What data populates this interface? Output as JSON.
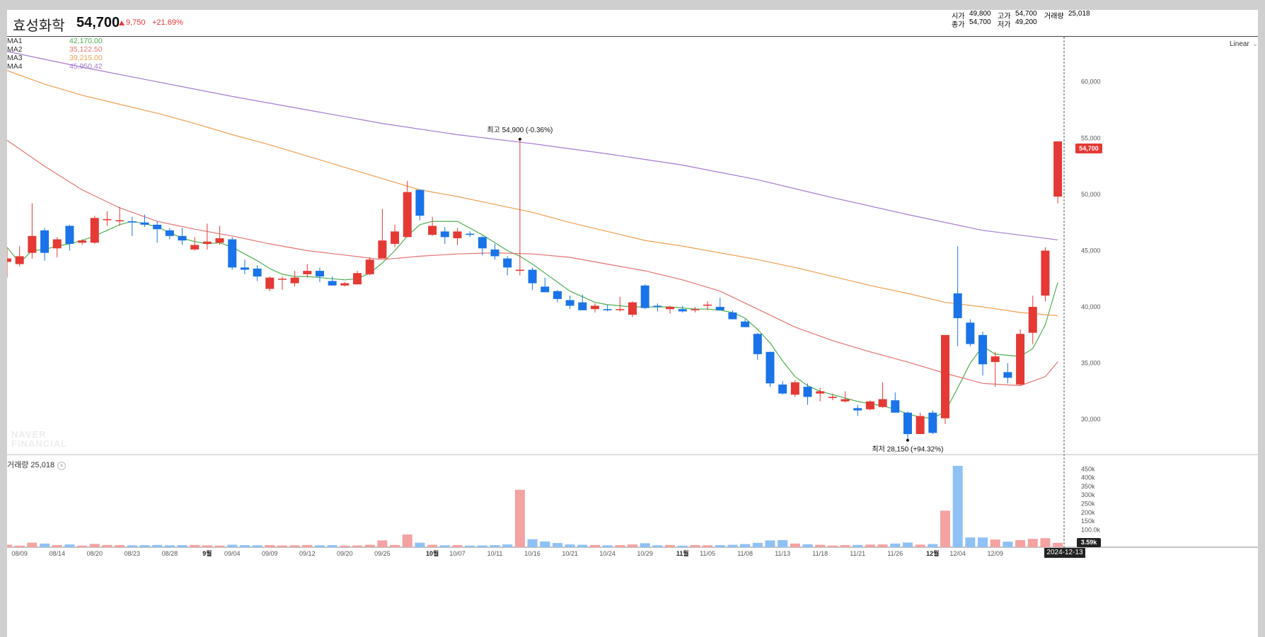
{
  "header": {
    "stock_name": "효성화학",
    "price": "54,700",
    "change": "9,750",
    "change_pct": "+21.69%",
    "ohlc": {
      "open_label": "시가",
      "open": "49,800",
      "high_label": "고가",
      "high": "54,700",
      "volume_label": "거래량",
      "volume": "25,018",
      "close_label": "종가",
      "close": "54,700",
      "low_label": "저가",
      "low": "49,200"
    }
  },
  "legend": {
    "ma": [
      {
        "name": "MA1",
        "value": "42,170.00",
        "color": "#4caf50"
      },
      {
        "name": "MA2",
        "value": "35,122.50",
        "color": "#e57373"
      },
      {
        "name": "MA3",
        "value": "39,215.00",
        "color": "#f0a050"
      },
      {
        "name": "MA4",
        "value": "45,950.42",
        "color": "#a57ad0"
      }
    ]
  },
  "scale_select": "Linear",
  "volume_label": "거래량 25,018",
  "watermark": {
    "line1": "NAVER",
    "line2": "FINANCIAL"
  },
  "current_price_tag": "54,700",
  "current_volume_tag": "3.59k",
  "crosshair_date": "2024-12-13",
  "annotations": {
    "high": "최고 54,900 (-0.36%)",
    "low": "최저 28,150 (+94.32%)"
  },
  "colors": {
    "up": "#e53935",
    "down": "#1a73e8",
    "vol_up": "#f4a2a2",
    "vol_down": "#8fc1f5"
  },
  "chart_data": {
    "type": "candlestick",
    "price_axis": {
      "ticks": [
        30000,
        35000,
        40000,
        45000,
        50000,
        55000,
        60000
      ],
      "labels": [
        "30,000",
        "35,000",
        "40,000",
        "45,000",
        "50,000",
        "55,000",
        "60,000"
      ],
      "range": [
        27000,
        64000
      ]
    },
    "volume_axis": {
      "ticks": [
        100000,
        150000,
        200000,
        250000,
        300000,
        350000,
        400000,
        450000
      ],
      "labels": [
        "100.0k",
        "150k",
        "200k",
        "250k",
        "300k",
        "350k",
        "400k",
        "450k"
      ],
      "range": [
        0,
        500000
      ]
    },
    "x_labels": [
      {
        "i": 1,
        "label": "08/09"
      },
      {
        "i": 4,
        "label": "08/14"
      },
      {
        "i": 7,
        "label": "08/20"
      },
      {
        "i": 10,
        "label": "08/23"
      },
      {
        "i": 13,
        "label": "08/28"
      },
      {
        "i": 16,
        "label": "9월",
        "bold": true
      },
      {
        "i": 18,
        "label": "09/04"
      },
      {
        "i": 21,
        "label": "09/09"
      },
      {
        "i": 24,
        "label": "09/12"
      },
      {
        "i": 27,
        "label": "09/20"
      },
      {
        "i": 30,
        "label": "09/25"
      },
      {
        "i": 34,
        "label": "10월",
        "bold": true
      },
      {
        "i": 36,
        "label": "10/07"
      },
      {
        "i": 39,
        "label": "10/11"
      },
      {
        "i": 42,
        "label": "10/16"
      },
      {
        "i": 45,
        "label": "10/21"
      },
      {
        "i": 48,
        "label": "10/24"
      },
      {
        "i": 51,
        "label": "10/29"
      },
      {
        "i": 54,
        "label": "11월",
        "bold": true
      },
      {
        "i": 56,
        "label": "11/05"
      },
      {
        "i": 59,
        "label": "11/08"
      },
      {
        "i": 62,
        "label": "11/13"
      },
      {
        "i": 65,
        "label": "11/18"
      },
      {
        "i": 68,
        "label": "11/21"
      },
      {
        "i": 71,
        "label": "11/26"
      },
      {
        "i": 74,
        "label": "12월",
        "bold": true
      },
      {
        "i": 76,
        "label": "12/04"
      },
      {
        "i": 79,
        "label": "12/09"
      }
    ],
    "candles": [
      [
        44000,
        45200,
        42600,
        44300,
        14000
      ],
      [
        43800,
        45400,
        43600,
        44500,
        9000
      ],
      [
        44800,
        49200,
        44300,
        46300,
        26000
      ],
      [
        46800,
        47000,
        44100,
        44800,
        21000
      ],
      [
        45200,
        46200,
        44400,
        46000,
        12000
      ],
      [
        47200,
        47300,
        45000,
        45600,
        16000
      ],
      [
        45700,
        46000,
        45500,
        45900,
        9000
      ],
      [
        45700,
        48100,
        45600,
        47900,
        19000
      ],
      [
        47700,
        48500,
        47200,
        47800,
        13000
      ],
      [
        47700,
        48900,
        47200,
        47700,
        12000
      ],
      [
        47600,
        48000,
        46300,
        47500,
        11000
      ],
      [
        47500,
        48200,
        47100,
        47300,
        12000
      ],
      [
        47300,
        47600,
        45700,
        46900,
        13000
      ],
      [
        46800,
        47000,
        46000,
        46300,
        11000
      ],
      [
        46300,
        47000,
        45500,
        45900,
        12000
      ],
      [
        45100,
        46200,
        45000,
        45500,
        13000
      ],
      [
        45600,
        47400,
        45100,
        45800,
        11000
      ],
      [
        45700,
        47200,
        45500,
        46100,
        9000
      ],
      [
        46000,
        46200,
        43300,
        43500,
        14000
      ],
      [
        43500,
        44200,
        42900,
        43300,
        12000
      ],
      [
        43400,
        43700,
        42300,
        42700,
        11000
      ],
      [
        41600,
        42700,
        41400,
        42600,
        12000
      ],
      [
        42500,
        42700,
        41500,
        42500,
        10000
      ],
      [
        42100,
        43200,
        41800,
        42600,
        11000
      ],
      [
        42900,
        43800,
        42600,
        43200,
        13000
      ],
      [
        43200,
        43500,
        42200,
        42700,
        11000
      ],
      [
        42300,
        42700,
        41900,
        41900,
        12000
      ],
      [
        41900,
        42200,
        41800,
        42100,
        9000
      ],
      [
        42000,
        43200,
        42000,
        43000,
        10000
      ],
      [
        42900,
        44400,
        42800,
        44200,
        14000
      ],
      [
        44300,
        48700,
        44300,
        45900,
        39000
      ],
      [
        45600,
        47300,
        45300,
        46700,
        13000
      ],
      [
        46200,
        51200,
        46200,
        50200,
        73000
      ],
      [
        50400,
        50400,
        47700,
        48100,
        26000
      ],
      [
        46400,
        48000,
        46300,
        47200,
        14000
      ],
      [
        46700,
        47100,
        45600,
        46200,
        11000
      ],
      [
        46100,
        47000,
        45500,
        46700,
        12000
      ],
      [
        46500,
        46700,
        46200,
        46400,
        9000
      ],
      [
        46200,
        46300,
        44600,
        45200,
        10000
      ],
      [
        45100,
        45600,
        44200,
        44500,
        12000
      ],
      [
        44300,
        44500,
        42800,
        43500,
        16000
      ],
      [
        43200,
        54900,
        42800,
        43300,
        330000
      ],
      [
        43300,
        43500,
        41500,
        42100,
        46000
      ],
      [
        41800,
        42600,
        41400,
        41300,
        33000
      ],
      [
        41400,
        41500,
        40400,
        40700,
        24000
      ],
      [
        40600,
        41000,
        39800,
        40100,
        16000
      ],
      [
        40400,
        41100,
        39700,
        39700,
        14000
      ],
      [
        39800,
        40300,
        39500,
        40100,
        13000
      ],
      [
        39800,
        40200,
        39600,
        39700,
        11000
      ],
      [
        39800,
        40900,
        39600,
        39800,
        12000
      ],
      [
        39300,
        40500,
        39100,
        40400,
        16000
      ],
      [
        41900,
        42000,
        39800,
        39900,
        23000
      ],
      [
        40100,
        40300,
        39600,
        40000,
        11000
      ],
      [
        39800,
        40100,
        39400,
        40000,
        13000
      ],
      [
        39800,
        40100,
        39500,
        39600,
        9000
      ],
      [
        39700,
        40000,
        39500,
        39800,
        12000
      ],
      [
        40100,
        40500,
        39700,
        40200,
        11000
      ],
      [
        40000,
        40800,
        39700,
        39700,
        12000
      ],
      [
        39500,
        39700,
        38900,
        38900,
        14000
      ],
      [
        38700,
        38900,
        38200,
        38200,
        18000
      ],
      [
        37600,
        37700,
        35300,
        35800,
        25000
      ],
      [
        36000,
        36000,
        32900,
        33200,
        39000
      ],
      [
        33100,
        33400,
        32200,
        32300,
        41000
      ],
      [
        32200,
        33500,
        32000,
        33300,
        21000
      ],
      [
        32900,
        33200,
        31300,
        32000,
        17000
      ],
      [
        32300,
        32800,
        31600,
        32500,
        14000
      ],
      [
        31900,
        32300,
        31700,
        32000,
        10000
      ],
      [
        31600,
        32500,
        31500,
        31800,
        12000
      ],
      [
        31000,
        31300,
        30300,
        30800,
        13000
      ],
      [
        30900,
        31700,
        30800,
        31600,
        15000
      ],
      [
        31100,
        33300,
        31000,
        31800,
        16000
      ],
      [
        31700,
        32400,
        30700,
        30600,
        21000
      ],
      [
        30600,
        30700,
        28150,
        28700,
        27000
      ],
      [
        28700,
        30600,
        28800,
        30300,
        15000
      ],
      [
        30600,
        30800,
        28700,
        28800,
        18000
      ],
      [
        30100,
        37500,
        29600,
        37500,
        210000
      ],
      [
        41200,
        45400,
        36500,
        39000,
        468000
      ],
      [
        38600,
        38900,
        36500,
        36700,
        56000
      ],
      [
        37500,
        37800,
        33900,
        34900,
        56000
      ],
      [
        35100,
        36000,
        32900,
        35600,
        44000
      ],
      [
        34200,
        35000,
        33200,
        33700,
        32000
      ],
      [
        33100,
        38000,
        33000,
        37600,
        41000
      ],
      [
        37700,
        41000,
        36700,
        40000,
        48000
      ],
      [
        41000,
        45300,
        40500,
        45000,
        52000
      ],
      [
        49800,
        54700,
        49200,
        54700,
        25018
      ]
    ],
    "ma_series": {
      "MA1": [
        [
          0,
          45300
        ],
        [
          1,
          43900
        ],
        [
          2,
          45000
        ],
        [
          3,
          45100
        ],
        [
          4,
          45400
        ],
        [
          5,
          45600
        ],
        [
          6,
          45900
        ],
        [
          7,
          46300
        ],
        [
          8,
          46800
        ],
        [
          9,
          47300
        ],
        [
          10,
          47600
        ],
        [
          11,
          47400
        ],
        [
          12,
          47100
        ],
        [
          13,
          46600
        ],
        [
          14,
          46100
        ],
        [
          15,
          45800
        ],
        [
          16,
          45600
        ],
        [
          17,
          45700
        ],
        [
          18,
          45300
        ],
        [
          19,
          44700
        ],
        [
          20,
          44100
        ],
        [
          21,
          43400
        ],
        [
          22,
          42900
        ],
        [
          23,
          42700
        ],
        [
          24,
          42700
        ],
        [
          25,
          42600
        ],
        [
          26,
          42500
        ],
        [
          27,
          42400
        ],
        [
          28,
          42500
        ],
        [
          29,
          43000
        ],
        [
          30,
          43900
        ],
        [
          31,
          45000
        ],
        [
          32,
          46300
        ],
        [
          33,
          47300
        ],
        [
          34,
          47600
        ],
        [
          35,
          47600
        ],
        [
          36,
          47600
        ],
        [
          37,
          47000
        ],
        [
          38,
          46400
        ],
        [
          39,
          45700
        ],
        [
          40,
          45000
        ],
        [
          41,
          44500
        ],
        [
          42,
          43800
        ],
        [
          43,
          43000
        ],
        [
          44,
          42200
        ],
        [
          45,
          41400
        ],
        [
          46,
          40900
        ],
        [
          47,
          40400
        ],
        [
          48,
          40200
        ],
        [
          49,
          40100
        ],
        [
          50,
          40000
        ],
        [
          51,
          40000
        ],
        [
          52,
          40000
        ],
        [
          53,
          40000
        ],
        [
          54,
          39900
        ],
        [
          55,
          39800
        ],
        [
          56,
          39800
        ],
        [
          57,
          39700
        ],
        [
          58,
          39500
        ],
        [
          59,
          39000
        ],
        [
          60,
          38000
        ],
        [
          61,
          36800
        ],
        [
          62,
          35200
        ],
        [
          63,
          33800
        ],
        [
          64,
          33000
        ],
        [
          65,
          32500
        ],
        [
          66,
          32200
        ],
        [
          67,
          31900
        ],
        [
          68,
          31600
        ],
        [
          69,
          31400
        ],
        [
          70,
          31200
        ],
        [
          71,
          30900
        ],
        [
          72,
          30500
        ],
        [
          73,
          30200
        ],
        [
          74,
          30100
        ],
        [
          75,
          30700
        ],
        [
          76,
          32800
        ],
        [
          77,
          35000
        ],
        [
          78,
          36500
        ],
        [
          79,
          35800
        ],
        [
          80,
          35700
        ],
        [
          81,
          35600
        ],
        [
          82,
          36300
        ],
        [
          83,
          38400
        ],
        [
          84,
          42170
        ]
      ],
      "MA2": [
        [
          0,
          54800
        ],
        [
          3,
          52500
        ],
        [
          6,
          50400
        ],
        [
          9,
          48800
        ],
        [
          12,
          47600
        ],
        [
          15,
          46900
        ],
        [
          18,
          46300
        ],
        [
          21,
          45600
        ],
        [
          24,
          45000
        ],
        [
          27,
          44600
        ],
        [
          30,
          44200
        ],
        [
          33,
          44500
        ],
        [
          36,
          44700
        ],
        [
          39,
          44800
        ],
        [
          42,
          44700
        ],
        [
          45,
          44400
        ],
        [
          48,
          43800
        ],
        [
          51,
          43200
        ],
        [
          54,
          42400
        ],
        [
          57,
          41400
        ],
        [
          60,
          39800
        ],
        [
          63,
          38200
        ],
        [
          66,
          37000
        ],
        [
          69,
          36000
        ],
        [
          72,
          35100
        ],
        [
          75,
          34100
        ],
        [
          78,
          33200
        ],
        [
          81,
          33000
        ],
        [
          83,
          33800
        ],
        [
          84,
          35122.5
        ]
      ],
      "MA3": [
        [
          0,
          61000
        ],
        [
          3,
          59800
        ],
        [
          6,
          58800
        ],
        [
          9,
          58000
        ],
        [
          12,
          57200
        ],
        [
          15,
          56300
        ],
        [
          18,
          55300
        ],
        [
          21,
          54400
        ],
        [
          24,
          53400
        ],
        [
          27,
          52400
        ],
        [
          30,
          51400
        ],
        [
          33,
          50400
        ],
        [
          36,
          49800
        ],
        [
          39,
          49100
        ],
        [
          42,
          48400
        ],
        [
          45,
          47500
        ],
        [
          48,
          46700
        ],
        [
          51,
          45900
        ],
        [
          54,
          45400
        ],
        [
          57,
          44800
        ],
        [
          60,
          44200
        ],
        [
          63,
          43500
        ],
        [
          66,
          42700
        ],
        [
          69,
          41900
        ],
        [
          72,
          41200
        ],
        [
          75,
          40400
        ],
        [
          78,
          40000
        ],
        [
          81,
          39500
        ],
        [
          84,
          39215
        ]
      ],
      "MA4": [
        [
          0,
          62700
        ],
        [
          6,
          61300
        ],
        [
          12,
          60000
        ],
        [
          18,
          58700
        ],
        [
          24,
          57500
        ],
        [
          30,
          56300
        ],
        [
          36,
          55300
        ],
        [
          42,
          54500
        ],
        [
          48,
          53600
        ],
        [
          54,
          52600
        ],
        [
          60,
          51300
        ],
        [
          66,
          49700
        ],
        [
          72,
          48200
        ],
        [
          78,
          46800
        ],
        [
          84,
          45950.42
        ]
      ]
    }
  }
}
